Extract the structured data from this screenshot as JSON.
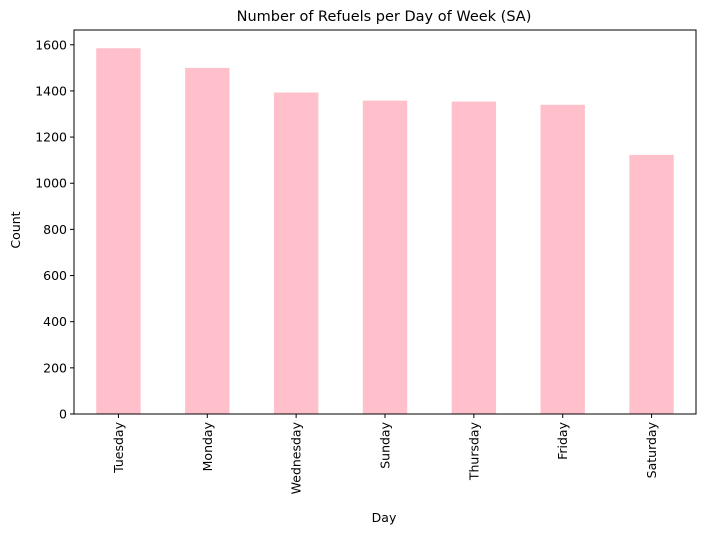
{
  "chart_data": {
    "type": "bar",
    "title": "Number of Refuels per Day of Week (SA)",
    "xlabel": "Day",
    "ylabel": "Count",
    "categories": [
      "Tuesday",
      "Monday",
      "Wednesday",
      "Sunday",
      "Thursday",
      "Friday",
      "Saturday"
    ],
    "values": [
      1585,
      1500,
      1393,
      1358,
      1354,
      1340,
      1123
    ],
    "yticks": [
      0,
      200,
      400,
      600,
      800,
      1000,
      1200,
      1400,
      1600
    ],
    "ylim": [
      0,
      1664
    ],
    "bar_color": "#ffc0cb",
    "grid": false,
    "legend": "none"
  }
}
